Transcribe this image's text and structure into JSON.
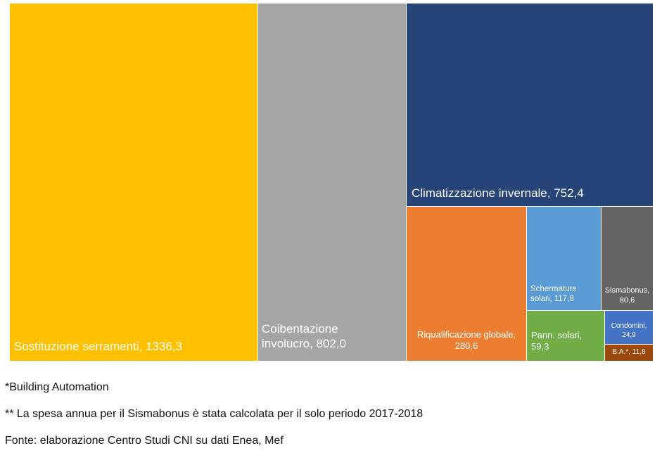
{
  "chart_data": {
    "type": "treemap",
    "title": "",
    "items": [
      {
        "id": "sostituzione",
        "label": "Sostituzione serramenti, 1336,3",
        "value": 1336.3,
        "color": "#FFC000"
      },
      {
        "id": "coibentazione",
        "label": "Coibentazione\ninvolucro, 802,0",
        "value": 802.0,
        "color": "#A5A5A5"
      },
      {
        "id": "climatizzazione",
        "label": "Climatizzazione invernale, 752,4",
        "value": 752.4,
        "color": "#264478"
      },
      {
        "id": "riqualificazione",
        "label": "Riqualificazione globale,\n280,6",
        "value": 280.6,
        "color": "#ED7D31"
      },
      {
        "id": "schermature",
        "label": "Schermature\nsolari, 117,8",
        "value": 117.8,
        "color": "#5B9BD5"
      },
      {
        "id": "sismabonus",
        "label": "Sismabonus,\n80,6",
        "value": 80.6,
        "color": "#636363"
      },
      {
        "id": "pannelli",
        "label": "Pann. solari,\n59,3",
        "value": 59.3,
        "color": "#70AD47"
      },
      {
        "id": "condomini",
        "label": "Condomini,\n24,9",
        "value": 24.9,
        "color": "#4472C4"
      },
      {
        "id": "building-automation",
        "label": "B.A.*, 11,8",
        "value": 11.8,
        "color": "#9E480E"
      }
    ]
  },
  "notes": {
    "ba_footnote": "*Building Automation",
    "sismabonus_footnote": "** La spesa annua per il Sismabonus è stata calcolata per il solo periodo 2017-2018",
    "source": "Fonte: elaborazione Centro Studi CNI su dati Enea, Mef"
  }
}
